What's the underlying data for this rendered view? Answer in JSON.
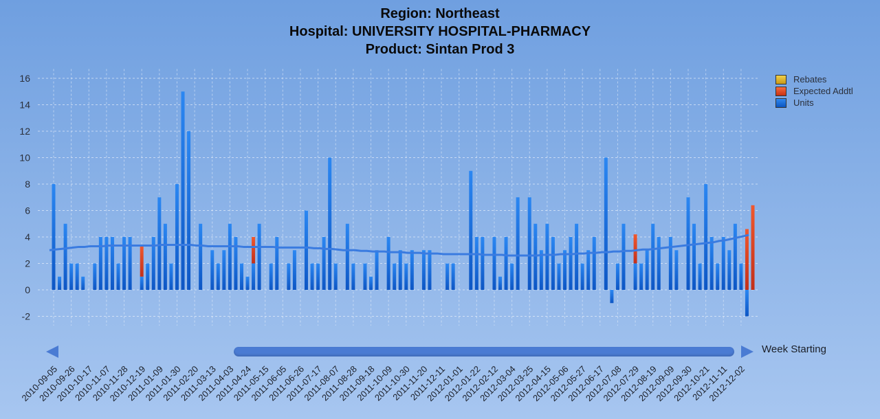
{
  "chart_data": {
    "type": "bar",
    "title_lines": [
      "Region: Northeast",
      "Hospital: UNIVERSITY HOSPITAL-PHARMACY",
      "Product: Sintan Prod 3"
    ],
    "xlabel": "Week Starting",
    "ylabel": "",
    "ylim": [
      -3,
      17
    ],
    "yticks": [
      -2,
      0,
      2,
      4,
      6,
      8,
      10,
      12,
      14,
      16
    ],
    "grid": true,
    "legend_position": "top-right",
    "x_tick_labels": [
      "2010-09-05",
      "2010-09-26",
      "2010-10-17",
      "2010-11-07",
      "2010-11-28",
      "2010-12-19",
      "2011-01-09",
      "2011-01-30",
      "2011-02-20",
      "2011-03-13",
      "2011-04-03",
      "2011-04-24",
      "2011-05-15",
      "2011-06-05",
      "2011-06-26",
      "2011-07-17",
      "2011-08-07",
      "2011-08-28",
      "2011-09-18",
      "2011-10-09",
      "2011-10-30",
      "2011-11-20",
      "2011-12-11",
      "2012-01-01",
      "2012-01-22",
      "2012-02-12",
      "2012-03-04",
      "2012-03-25",
      "2012-04-15",
      "2012-05-06",
      "2012-05-27",
      "2012-06-17",
      "2012-07-08",
      "2012-07-29",
      "2012-08-19",
      "2012-09-09",
      "2012-09-30",
      "2012-10-21",
      "2012-11-11",
      "2012-12-02"
    ],
    "series": [
      {
        "name": "Rebates",
        "color": "#d9b22a",
        "values": [
          0,
          0,
          0,
          0,
          0,
          0,
          0,
          0,
          0,
          0,
          0,
          0,
          0,
          0,
          0,
          0,
          0,
          0,
          0,
          0,
          0,
          0,
          0,
          0,
          0,
          0,
          0,
          0,
          0,
          0,
          0,
          0,
          0,
          0,
          0,
          0,
          0,
          0,
          0,
          0,
          0,
          0,
          0,
          0,
          0,
          0,
          0,
          0,
          0,
          0,
          0,
          0,
          0,
          0,
          0,
          0,
          0,
          0,
          0,
          0,
          0,
          0,
          0,
          0,
          0,
          0,
          0,
          0,
          0,
          0,
          0,
          0,
          0,
          0,
          0,
          0,
          0,
          0,
          0,
          0,
          0,
          0,
          0,
          0,
          0,
          0,
          0,
          0,
          0,
          0,
          0,
          0,
          0,
          0,
          0,
          0,
          0,
          0,
          0,
          0,
          0,
          0,
          0,
          0,
          0,
          0,
          0,
          0,
          0,
          0,
          0,
          0,
          0,
          0,
          0,
          0,
          0,
          0,
          0,
          0
        ]
      },
      {
        "name": "Expected Addtl",
        "color": "#e0452a",
        "values": [
          0,
          0,
          0,
          0,
          0,
          0,
          0,
          0,
          0,
          0,
          0,
          0,
          0,
          0,
          0,
          2.3,
          0,
          0,
          0,
          0,
          0,
          0,
          0,
          0,
          0,
          0,
          0,
          0,
          0,
          0,
          0,
          0,
          0,
          0,
          2.0,
          0,
          0,
          0,
          0,
          0,
          0,
          0,
          0,
          0,
          0,
          0,
          0,
          0,
          0,
          0,
          0,
          0,
          0,
          0,
          0,
          0,
          0,
          0,
          0,
          0,
          0,
          0,
          0,
          0,
          0,
          0,
          0,
          0,
          0,
          0,
          0,
          0,
          0,
          0,
          0,
          0,
          0,
          0,
          0,
          0,
          0,
          0,
          0,
          0,
          0,
          0,
          0,
          0,
          0,
          0,
          0,
          0,
          0,
          0,
          0,
          0,
          0,
          0,
          0,
          2.2,
          0,
          0,
          0,
          0,
          0,
          0,
          0,
          0,
          0,
          0,
          0,
          0,
          0,
          0,
          0,
          0,
          0,
          0,
          4.6,
          6.4
        ]
      },
      {
        "name": "Units",
        "color": "#1a6fe0",
        "values": [
          8,
          1,
          5,
          2,
          2,
          1,
          0,
          2,
          4,
          4,
          4,
          2,
          4,
          4,
          0,
          1,
          2,
          4,
          7,
          5,
          2,
          8,
          15,
          12,
          0,
          5,
          0,
          3,
          2,
          3,
          5,
          4,
          2,
          1,
          2,
          5,
          0,
          2,
          4,
          0,
          2,
          3,
          0,
          6,
          2,
          2,
          4,
          10,
          2,
          0,
          5,
          2,
          0,
          2,
          1,
          3,
          0,
          4,
          2,
          3,
          2,
          3,
          0,
          3,
          3,
          0,
          0,
          2,
          2,
          0,
          0,
          9,
          4,
          4,
          0,
          4,
          1,
          4,
          2,
          7,
          0,
          7,
          5,
          3,
          5,
          4,
          2,
          3,
          4,
          5,
          2,
          3,
          4,
          0,
          10,
          -1,
          2,
          5,
          0,
          2,
          2,
          3,
          5,
          4,
          0,
          4,
          3,
          0,
          7,
          5,
          2,
          8,
          4,
          2,
          4,
          3,
          5,
          2,
          -2,
          0
        ]
      }
    ],
    "trend": {
      "name": "Trend",
      "color": "#3a7be0",
      "values": [
        3.0,
        3.05,
        3.1,
        3.15,
        3.2,
        3.25,
        3.25,
        3.3,
        3.3,
        3.3,
        3.35,
        3.35,
        3.35,
        3.35,
        3.35,
        3.35,
        3.35,
        3.35,
        3.35,
        3.4,
        3.4,
        3.4,
        3.4,
        3.4,
        3.4,
        3.35,
        3.35,
        3.3,
        3.3,
        3.3,
        3.3,
        3.3,
        3.3,
        3.25,
        3.25,
        3.25,
        3.25,
        3.25,
        3.25,
        3.2,
        3.2,
        3.2,
        3.2,
        3.2,
        3.2,
        3.15,
        3.15,
        3.1,
        3.1,
        3.05,
        3.0,
        3.0,
        3.0,
        2.95,
        2.95,
        2.9,
        2.9,
        2.9,
        2.85,
        2.85,
        2.85,
        2.8,
        2.8,
        2.8,
        2.75,
        2.75,
        2.75,
        2.7,
        2.7,
        2.7,
        2.7,
        2.7,
        2.7,
        2.7,
        2.65,
        2.65,
        2.65,
        2.65,
        2.6,
        2.6,
        2.6,
        2.6,
        2.6,
        2.6,
        2.65,
        2.65,
        2.65,
        2.7,
        2.7,
        2.7,
        2.75,
        2.75,
        2.8,
        2.8,
        2.85,
        2.85,
        2.9,
        2.9,
        2.95,
        2.95,
        3.0,
        3.05,
        3.05,
        3.1,
        3.15,
        3.2,
        3.25,
        3.3,
        3.35,
        3.4,
        3.45,
        3.5,
        3.55,
        3.6,
        3.7,
        3.75,
        3.85,
        3.95,
        4.05,
        4.15
      ]
    }
  }
}
